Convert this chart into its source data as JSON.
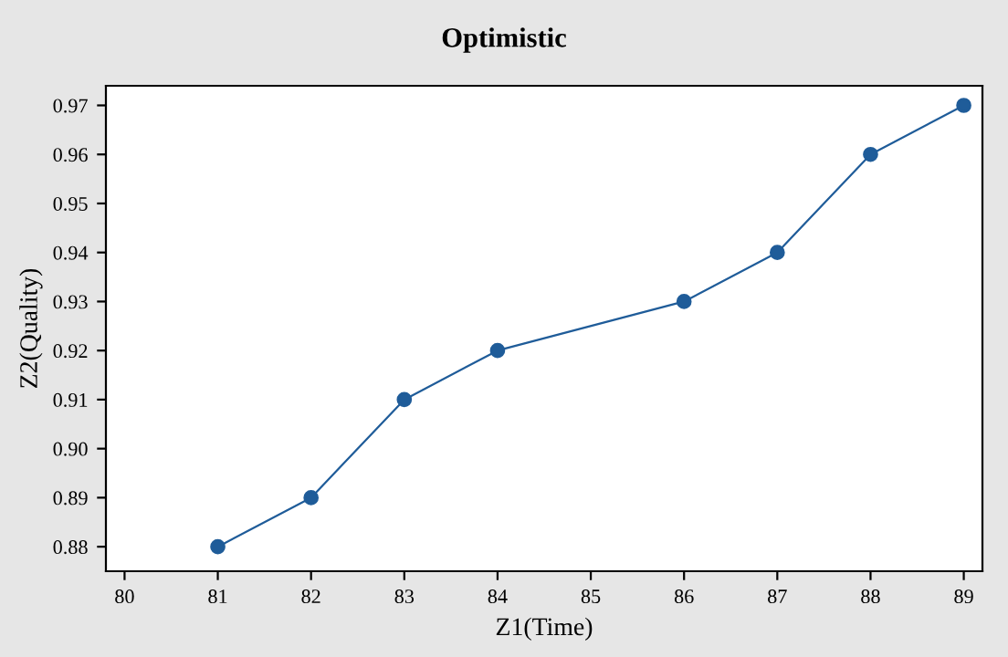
{
  "chart_data": {
    "type": "line",
    "title": "Optimistic",
    "xlabel": "Z1(Time)",
    "ylabel": "Z2(Quality)",
    "x": [
      81,
      82,
      83,
      84,
      86,
      87,
      88,
      89
    ],
    "series": [
      {
        "color": "#1f5c99",
        "values": [
          0.88,
          0.89,
          0.91,
          0.92,
          0.93,
          0.94,
          0.96,
          0.97
        ]
      }
    ],
    "xlim": [
      79.8,
      89.2
    ],
    "xticks": [
      80,
      81,
      82,
      83,
      84,
      85,
      86,
      87,
      88,
      89
    ],
    "ylim": [
      0.875,
      0.974
    ],
    "yticks": [
      0.88,
      0.89,
      {
        "value": 0.9,
        "label": "0.90"
      },
      0.91,
      0.92,
      0.93,
      0.94,
      0.95,
      0.96,
      0.97
    ],
    "marker": "circle",
    "line_style": "solid",
    "grid": false,
    "legend": false
  }
}
